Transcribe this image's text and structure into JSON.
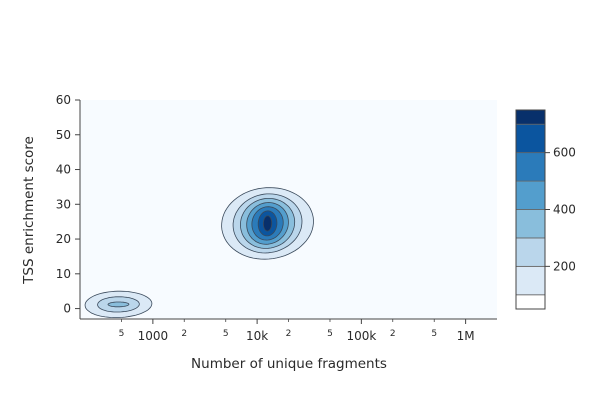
{
  "chart_data": {
    "type": "contour",
    "title": "",
    "xlabel": "Number of unique fragments",
    "ylabel": "TSS enrichment score",
    "x_scale": "log",
    "x_range": [
      200,
      2000000
    ],
    "y_range": [
      -3,
      60
    ],
    "x_major_ticks": [
      {
        "value": 1000,
        "label": "1000"
      },
      {
        "value": 10000,
        "label": "10k"
      },
      {
        "value": 100000,
        "label": "100k"
      },
      {
        "value": 1000000,
        "label": "1M"
      }
    ],
    "x_minor_ticks": [
      {
        "value": 500,
        "label": "5"
      },
      {
        "value": 2000,
        "label": "2"
      },
      {
        "value": 5000,
        "label": "5"
      },
      {
        "value": 20000,
        "label": "2"
      },
      {
        "value": 50000,
        "label": "5"
      },
      {
        "value": 200000,
        "label": "2"
      },
      {
        "value": 500000,
        "label": "5"
      }
    ],
    "y_ticks": [
      {
        "value": 0,
        "label": "0"
      },
      {
        "value": 10,
        "label": "10"
      },
      {
        "value": 20,
        "label": "20"
      },
      {
        "value": 30,
        "label": "30"
      },
      {
        "value": 40,
        "label": "40"
      },
      {
        "value": 50,
        "label": "50"
      },
      {
        "value": 60,
        "label": "60"
      }
    ],
    "grid": false,
    "plot_background": "#f7fbff",
    "clusters": [
      {
        "center_log10_x": 2.67,
        "center_y": 1.2,
        "levels": [
          {
            "level": 0,
            "rx_log10": 0.32,
            "ry": 3.8,
            "skew": 0.25
          },
          {
            "level": 1,
            "rx_log10": 0.2,
            "ry": 2.2,
            "skew": 0.2
          },
          {
            "level": 2,
            "rx_log10": 0.1,
            "ry": 0.7,
            "skew": 0.2
          }
        ]
      },
      {
        "center_log10_x": 4.1,
        "center_y": 24.5,
        "levels": [
          {
            "level": 0,
            "rx_log10": 0.44,
            "ry": 10.3,
            "skew": 0.12
          },
          {
            "level": 1,
            "rx_log10": 0.33,
            "ry": 8.5,
            "skew": 0.12
          },
          {
            "level": 2,
            "rx_log10": 0.26,
            "ry": 7.2,
            "skew": 0.1
          },
          {
            "level": 3,
            "rx_log10": 0.2,
            "ry": 6.0,
            "skew": 0.1
          },
          {
            "level": 4,
            "rx_log10": 0.15,
            "ry": 4.8,
            "skew": 0.08
          },
          {
            "level": 5,
            "rx_log10": 0.09,
            "ry": 3.6,
            "skew": 0.05
          },
          {
            "level": 6,
            "rx_log10": 0.04,
            "ry": 2.2,
            "skew": 0.03
          }
        ]
      }
    ],
    "colorbar": {
      "bands": [
        {
          "from": 0,
          "to": 100,
          "color": "#ffffff"
        },
        {
          "from": 100,
          "to": 200,
          "color": "#dbe9f6"
        },
        {
          "from": 200,
          "to": 300,
          "color": "#bad6eb"
        },
        {
          "from": 300,
          "to": 400,
          "color": "#89bedc"
        },
        {
          "from": 400,
          "to": 500,
          "color": "#539ecd"
        },
        {
          "from": 500,
          "to": 600,
          "color": "#2b7bba"
        },
        {
          "from": 600,
          "to": 700,
          "color": "#0b559f"
        },
        {
          "from": 700,
          "to": 750,
          "color": "#08306b"
        }
      ],
      "range": [
        50,
        750
      ],
      "ticks": [
        {
          "value": 200,
          "label": "200"
        },
        {
          "value": 400,
          "label": "400"
        },
        {
          "value": 600,
          "label": "600"
        }
      ]
    }
  }
}
